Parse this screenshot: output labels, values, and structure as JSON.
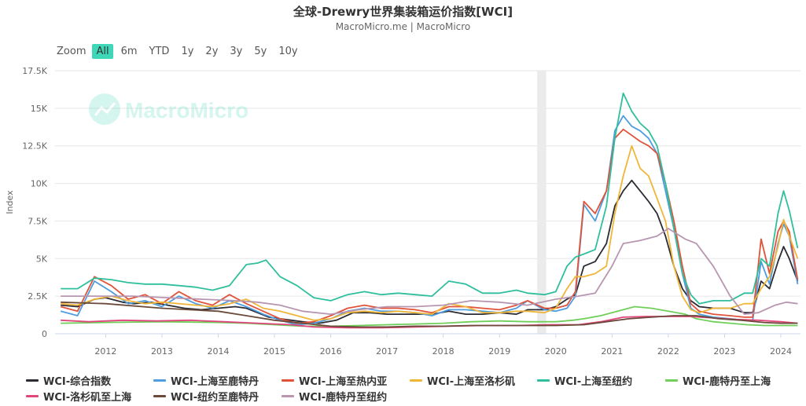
{
  "header": {
    "title": "全球-Drewry世界集装箱运价指数[WCI]",
    "subtitle": "MacroMicro.me | MacroMicro"
  },
  "zoom": {
    "label": "Zoom",
    "buttons": [
      "All",
      "6m",
      "YTD",
      "1y",
      "2y",
      "3y",
      "5y",
      "10y"
    ],
    "active": "All"
  },
  "watermark": "MacroMicro",
  "colors": {
    "grid": "#e6e6e6",
    "recession": "#ebebeb",
    "axis_text": "#666666",
    "zoom_active": "#3ed7b7"
  },
  "chart_data": {
    "type": "line",
    "title": "全球-Drewry世界集装箱运价指数[WCI]",
    "ylabel": "Index",
    "xlabel": "",
    "ylim": [
      0,
      17500
    ],
    "y_ticks": [
      0,
      2500,
      5000,
      7500,
      10000,
      12500,
      15000,
      17500
    ],
    "y_tick_labels": [
      "0",
      "2.5K",
      "5K",
      "7.5K",
      "10K",
      "12.5K",
      "15K",
      "17.5K"
    ],
    "xlim": [
      2011.6,
      2024.85
    ],
    "x_ticks": [
      "2012",
      "2013",
      "2014",
      "2015",
      "2016",
      "2017",
      "2018",
      "2019",
      "2020",
      "2021",
      "2022",
      "2023",
      "2024"
    ],
    "grid": true,
    "legend_position": "bottom",
    "shaded_period": [
      2020.17,
      2020.33
    ],
    "series": [
      {
        "name": "WCI-综合指数",
        "color": "#2b2b33",
        "x": [
          2011.7,
          2012.0,
          2012.3,
          2012.5,
          2012.8,
          2013.0,
          2013.3,
          2013.6,
          2013.9,
          2014.2,
          2014.5,
          2014.8,
          2015.0,
          2015.2,
          2015.4,
          2015.6,
          2015.8,
          2016.0,
          2016.3,
          2016.6,
          2016.9,
          2017.2,
          2017.5,
          2017.8,
          2018.0,
          2018.3,
          2018.6,
          2018.9,
          2019.2,
          2019.5,
          2019.8,
          2020.0,
          2020.3,
          2020.5,
          2020.7,
          2020.85,
          2021.0,
          2021.2,
          2021.4,
          2021.55,
          2021.7,
          2021.85,
          2022.0,
          2022.15,
          2022.3,
          2022.45,
          2022.6,
          2022.75,
          2022.9,
          2023.05,
          2023.3,
          2023.6,
          2023.85,
          2024.0,
          2024.15,
          2024.3,
          2024.45,
          2024.55,
          2024.65,
          2024.8
        ],
        "y": [
          1900,
          1800,
          2300,
          2400,
          2100,
          2000,
          2100,
          1900,
          1700,
          1600,
          1700,
          1800,
          1700,
          1400,
          1100,
          1000,
          900,
          800,
          700,
          900,
          1400,
          1400,
          1300,
          1300,
          1300,
          1300,
          1500,
          1300,
          1300,
          1400,
          1300,
          1600,
          1600,
          1800,
          2300,
          2600,
          4500,
          4800,
          6000,
          8500,
          9500,
          10200,
          9500,
          8800,
          8000,
          6500,
          4500,
          3000,
          2200,
          1800,
          1700,
          1700,
          1400,
          1400,
          3500,
          3000,
          4800,
          5800,
          5000,
          3500
        ]
      },
      {
        "name": "WCI-上海至鹿特丹",
        "color": "#4d9de0",
        "x": [
          2011.7,
          2012.0,
          2012.3,
          2012.6,
          2012.9,
          2013.2,
          2013.5,
          2013.8,
          2014.1,
          2014.4,
          2014.7,
          2015.0,
          2015.3,
          2015.6,
          2015.9,
          2016.2,
          2016.5,
          2016.8,
          2017.1,
          2017.4,
          2017.7,
          2018.0,
          2018.3,
          2018.6,
          2018.9,
          2019.2,
          2019.5,
          2019.8,
          2020.0,
          2020.3,
          2020.5,
          2020.7,
          2020.85,
          2021.0,
          2021.2,
          2021.4,
          2021.55,
          2021.7,
          2021.85,
          2022.0,
          2022.15,
          2022.3,
          2022.45,
          2022.6,
          2022.75,
          2022.9,
          2023.05,
          2023.3,
          2023.6,
          2023.85,
          2024.0,
          2024.15,
          2024.3,
          2024.45,
          2024.55,
          2024.65,
          2024.8
        ],
        "y": [
          1500,
          1200,
          3500,
          2800,
          2000,
          2200,
          1800,
          2500,
          2000,
          1700,
          2200,
          1800,
          1300,
          900,
          600,
          700,
          1000,
          1500,
          1700,
          1500,
          1500,
          1400,
          1200,
          1600,
          1600,
          1500,
          1400,
          1700,
          2200,
          1600,
          1500,
          1700,
          2500,
          8600,
          7500,
          9500,
          13500,
          14500,
          13800,
          13500,
          13000,
          12000,
          9500,
          7000,
          4000,
          1700,
          1300,
          1100,
          1000,
          900,
          900,
          4800,
          3300,
          6000,
          7300,
          6500,
          3300
        ]
      },
      {
        "name": "WCI-上海至热内亚",
        "color": "#e0533a",
        "x": [
          2011.7,
          2012.0,
          2012.3,
          2012.6,
          2012.9,
          2013.2,
          2013.5,
          2013.8,
          2014.1,
          2014.4,
          2014.7,
          2015.0,
          2015.3,
          2015.6,
          2015.9,
          2016.2,
          2016.5,
          2016.8,
          2017.1,
          2017.4,
          2017.7,
          2018.0,
          2018.3,
          2018.6,
          2018.9,
          2019.2,
          2019.5,
          2019.8,
          2020.0,
          2020.3,
          2020.5,
          2020.7,
          2020.85,
          2021.0,
          2021.2,
          2021.4,
          2021.55,
          2021.7,
          2021.85,
          2022.0,
          2022.15,
          2022.3,
          2022.45,
          2022.6,
          2022.75,
          2022.9,
          2023.05,
          2023.3,
          2023.6,
          2023.85,
          2024.0,
          2024.15,
          2024.3,
          2024.45,
          2024.55,
          2024.65,
          2024.8
        ],
        "y": [
          1800,
          1500,
          3800,
          3200,
          2300,
          2600,
          2000,
          2800,
          2200,
          1900,
          2600,
          2000,
          1500,
          1000,
          700,
          800,
          1200,
          1700,
          1900,
          1700,
          1700,
          1600,
          1400,
          1800,
          1800,
          1700,
          1600,
          1900,
          2200,
          1700,
          1700,
          1900,
          2800,
          8800,
          8000,
          9500,
          13000,
          13600,
          13200,
          12800,
          12500,
          12000,
          10000,
          7500,
          4500,
          2000,
          1500,
          1300,
          1200,
          1100,
          1100,
          6300,
          4000,
          6800,
          7500,
          6800,
          3600
        ]
      },
      {
        "name": "WCI-上海至洛杉矶",
        "color": "#f0b63a",
        "x": [
          2011.7,
          2012.0,
          2012.3,
          2012.6,
          2012.9,
          2013.2,
          2013.5,
          2013.8,
          2014.1,
          2014.4,
          2014.7,
          2015.0,
          2015.3,
          2015.6,
          2015.9,
          2016.2,
          2016.5,
          2016.8,
          2017.1,
          2017.4,
          2017.7,
          2018.0,
          2018.3,
          2018.6,
          2018.9,
          2019.2,
          2019.5,
          2019.8,
          2020.0,
          2020.3,
          2020.5,
          2020.7,
          2020.85,
          2021.0,
          2021.2,
          2021.4,
          2021.55,
          2021.7,
          2021.85,
          2022.0,
          2022.15,
          2022.3,
          2022.45,
          2022.6,
          2022.75,
          2022.9,
          2023.05,
          2023.3,
          2023.6,
          2023.85,
          2024.0,
          2024.15,
          2024.3,
          2024.45,
          2024.55,
          2024.65,
          2024.8
        ],
        "y": [
          2000,
          1900,
          2300,
          2500,
          2200,
          2000,
          2100,
          2000,
          1900,
          1800,
          2000,
          2300,
          1700,
          1500,
          1200,
          900,
          1000,
          1400,
          1500,
          1400,
          1500,
          1400,
          1300,
          2000,
          1800,
          1400,
          1400,
          1500,
          1500,
          1400,
          1700,
          3000,
          3800,
          3800,
          4000,
          4500,
          8000,
          10500,
          12500,
          11000,
          10500,
          9000,
          7500,
          4500,
          2500,
          1600,
          1400,
          1700,
          1700,
          2000,
          2000,
          3000,
          3800,
          5800,
          7600,
          6500,
          5000
        ]
      },
      {
        "name": "WCI-上海至纽约",
        "color": "#2fbf9c",
        "x": [
          2011.7,
          2012.0,
          2012.3,
          2012.6,
          2012.9,
          2013.2,
          2013.5,
          2013.8,
          2014.1,
          2014.4,
          2014.7,
          2015.0,
          2015.2,
          2015.35,
          2015.6,
          2015.9,
          2016.2,
          2016.5,
          2016.8,
          2017.1,
          2017.4,
          2017.7,
          2018.0,
          2018.3,
          2018.6,
          2018.9,
          2019.2,
          2019.5,
          2019.8,
          2020.0,
          2020.3,
          2020.5,
          2020.7,
          2020.85,
          2021.0,
          2021.2,
          2021.4,
          2021.55,
          2021.7,
          2021.85,
          2022.0,
          2022.15,
          2022.3,
          2022.45,
          2022.6,
          2022.75,
          2022.9,
          2023.05,
          2023.3,
          2023.6,
          2023.85,
          2024.0,
          2024.15,
          2024.3,
          2024.45,
          2024.55,
          2024.65,
          2024.8
        ],
        "y": [
          3000,
          3000,
          3700,
          3600,
          3400,
          3300,
          3300,
          3200,
          3100,
          2900,
          3200,
          4600,
          4700,
          4900,
          3800,
          3200,
          2400,
          2200,
          2600,
          2800,
          2600,
          2700,
          2600,
          2500,
          3500,
          3300,
          2700,
          2700,
          2900,
          2700,
          2600,
          2800,
          4500,
          5100,
          5300,
          5600,
          8500,
          13000,
          16000,
          14800,
          14000,
          13500,
          12500,
          10000,
          7000,
          4000,
          2600,
          2000,
          2200,
          2200,
          2700,
          2700,
          5000,
          4500,
          8000,
          9500,
          8200,
          5700
        ]
      },
      {
        "name": "WCI-鹿特丹至上海",
        "color": "#6fcf5a",
        "x": [
          2011.7,
          2012.5,
          2013.5,
          2014.5,
          2015.0,
          2015.5,
          2016.0,
          2016.5,
          2017.0,
          2017.5,
          2018.0,
          2018.5,
          2019.0,
          2019.5,
          2020.0,
          2020.5,
          2020.8,
          2021.0,
          2021.3,
          2021.6,
          2021.9,
          2022.2,
          2022.5,
          2022.8,
          2023.0,
          2023.3,
          2023.6,
          2023.9,
          2024.2,
          2024.5,
          2024.8
        ],
        "y": [
          700,
          750,
          800,
          750,
          700,
          600,
          500,
          500,
          550,
          600,
          650,
          700,
          800,
          850,
          800,
          800,
          900,
          1000,
          1200,
          1500,
          1800,
          1700,
          1500,
          1300,
          1000,
          800,
          700,
          600,
          550,
          550,
          550
        ]
      },
      {
        "name": "WCI-洛杉矶至上海",
        "color": "#e0457b",
        "x": [
          2011.7,
          2012.2,
          2012.8,
          2013.4,
          2014.0,
          2014.6,
          2015.2,
          2015.8,
          2016.2,
          2016.8,
          2017.4,
          2018.0,
          2018.6,
          2019.2,
          2019.8,
          2020.4,
          2020.9,
          2021.3,
          2021.7,
          2022.1,
          2022.5,
          2022.9,
          2023.3,
          2023.7,
          2024.1,
          2024.5,
          2024.8
        ],
        "y": [
          900,
          800,
          900,
          850,
          900,
          800,
          700,
          600,
          450,
          400,
          400,
          450,
          500,
          550,
          550,
          600,
          600,
          800,
          1100,
          1150,
          1150,
          1150,
          1050,
          950,
          900,
          800,
          700
        ]
      },
      {
        "name": "WCI-纽约至鹿特丹",
        "color": "#6b4a3a",
        "x": [
          2011.7,
          2012.5,
          2013.5,
          2014.5,
          2015.0,
          2015.5,
          2016.0,
          2016.5,
          2017.0,
          2017.5,
          2018.0,
          2018.5,
          2019.0,
          2019.5,
          2020.0,
          2020.5,
          2021.0,
          2021.4,
          2021.8,
          2022.2,
          2022.6,
          2023.0,
          2023.4,
          2023.8,
          2024.2,
          2024.5,
          2024.8
        ],
        "y": [
          2100,
          2000,
          1700,
          1500,
          1200,
          900,
          700,
          500,
          450,
          450,
          500,
          500,
          550,
          550,
          550,
          550,
          600,
          800,
          1000,
          1100,
          1200,
          1200,
          1000,
          900,
          750,
          700,
          700
        ]
      },
      {
        "name": "WCI-鹿特丹至纽约",
        "color": "#b896b0",
        "x": [
          2011.7,
          2012.3,
          2013.0,
          2013.6,
          2014.2,
          2014.8,
          2015.2,
          2015.6,
          2016.0,
          2016.5,
          2017.0,
          2017.5,
          2018.0,
          2018.5,
          2019.0,
          2019.5,
          2020.0,
          2020.5,
          2020.9,
          2021.2,
          2021.5,
          2021.7,
          2022.0,
          2022.3,
          2022.5,
          2022.8,
          2023.0,
          2023.3,
          2023.6,
          2023.85,
          2024.1,
          2024.4,
          2024.6,
          2024.8
        ],
        "y": [
          2500,
          2500,
          2500,
          2400,
          2300,
          2200,
          2100,
          1900,
          1500,
          1300,
          1600,
          1800,
          1800,
          1900,
          2200,
          2100,
          1900,
          2300,
          2500,
          2700,
          4500,
          6000,
          6200,
          6500,
          7000,
          6300,
          6000,
          4500,
          2500,
          1300,
          1400,
          1900,
          2100,
          2000
        ]
      }
    ]
  },
  "legend_items": [
    "WCI-综合指数",
    "WCI-上海至鹿特丹",
    "WCI-上海至热内亚",
    "WCI-上海至洛杉矶",
    "WCI-上海至纽约",
    "WCI-鹿特丹至上海",
    "WCI-洛杉矶至上海",
    "WCI-纽约至鹿特丹",
    "WCI-鹿特丹至纽约"
  ]
}
